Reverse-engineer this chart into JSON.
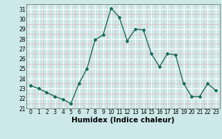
{
  "x": [
    0,
    1,
    2,
    3,
    4,
    5,
    6,
    7,
    8,
    9,
    10,
    11,
    12,
    13,
    14,
    15,
    16,
    17,
    18,
    19,
    20,
    21,
    22,
    23
  ],
  "y": [
    23.3,
    23.0,
    22.6,
    22.2,
    21.9,
    21.5,
    23.5,
    25.0,
    27.9,
    28.4,
    31.1,
    30.2,
    27.8,
    29.0,
    28.9,
    26.5,
    25.2,
    26.5,
    26.4,
    23.5,
    22.2,
    22.2,
    23.5,
    22.8
  ],
  "line_color": "#1a6b5a",
  "marker": "D",
  "marker_size": 2.0,
  "bg_color": "#cce8e8",
  "grid_major_color": "#ffffff",
  "grid_minor_color": "#e8b0b0",
  "xlabel": "Humidex (Indice chaleur)",
  "xlim": [
    -0.5,
    23.5
  ],
  "ylim": [
    21,
    31.5
  ],
  "yticks": [
    21,
    22,
    23,
    24,
    25,
    26,
    27,
    28,
    29,
    30,
    31
  ],
  "xticks": [
    0,
    1,
    2,
    3,
    4,
    5,
    6,
    7,
    8,
    9,
    10,
    11,
    12,
    13,
    14,
    15,
    16,
    17,
    18,
    19,
    20,
    21,
    22,
    23
  ],
  "tick_label_fontsize": 5.5,
  "xlabel_fontsize": 7.5,
  "line_width": 1.0
}
